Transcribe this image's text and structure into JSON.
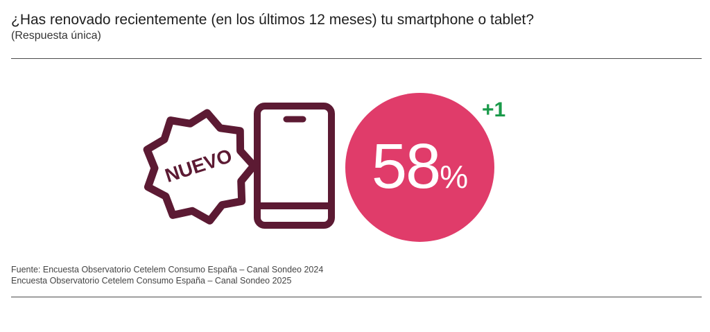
{
  "header": {
    "title": "¿Has renovado recientemente (en los últimos 12 meses) tu smartphone o tablet?",
    "subtitle": "(Respuesta única)"
  },
  "illustration": {
    "badge_text": "NUEVO",
    "icons": [
      "new-badge-icon",
      "smartphone-icon"
    ],
    "line_color": "#5c1a33"
  },
  "chart_data": {
    "type": "pie",
    "title": "¿Has renovado recientemente (en los últimos 12 meses) tu smartphone o tablet?",
    "subtitle": "(Respuesta única)",
    "value": 58,
    "value_display": "58",
    "unit": "%",
    "change_display": "+1",
    "change": 1,
    "circle_color": "#e03c6a",
    "change_color": "#1a9a4a"
  },
  "footer": {
    "sources": [
      "Fuente: Encuesta Observatorio Cetelem Consumo España – Canal Sondeo 2024",
      "Encuesta Observatorio Cetelem Consumo España – Canal Sondeo 2025"
    ]
  }
}
